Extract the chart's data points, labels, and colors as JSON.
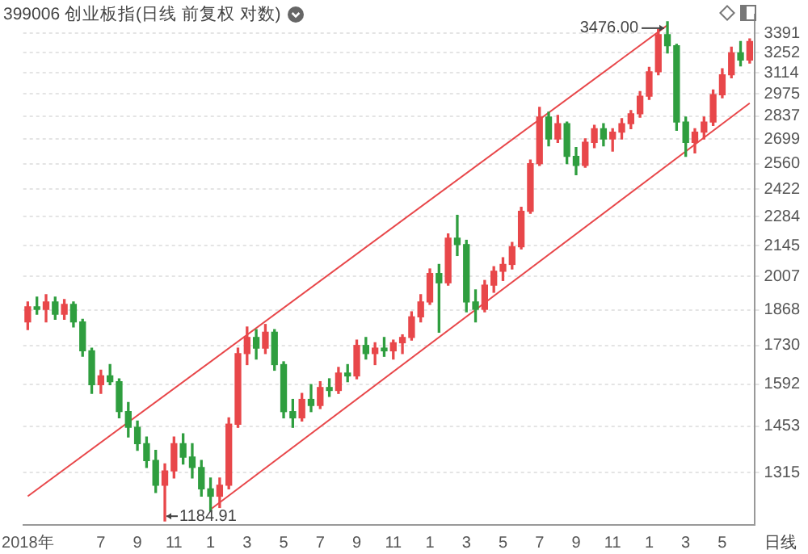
{
  "chart_data": {
    "type": "candlestick",
    "title": "399006 创业板指(日线 前复权 对数)",
    "categories": [
      "2018年",
      null,
      null,
      null,
      null,
      null,
      null,
      null,
      "7",
      null,
      null,
      null,
      "9",
      null,
      null,
      null,
      "11",
      null,
      null,
      null,
      "1",
      null,
      null,
      null,
      "3",
      null,
      null,
      null,
      "5",
      null,
      null,
      null,
      "7",
      null,
      null,
      null,
      "9",
      null,
      null,
      null,
      "11",
      null,
      null,
      null,
      "1",
      null,
      null,
      null,
      "3",
      null,
      null,
      null,
      "5",
      null,
      null,
      null,
      "7",
      null,
      null,
      null,
      "9",
      null,
      null,
      null,
      "11",
      null,
      null,
      null,
      "1",
      null,
      null,
      null,
      "3",
      null,
      null,
      null,
      "5",
      null,
      null,
      null
    ],
    "ohlc": [
      [
        1820,
        1900,
        1790,
        1880
      ],
      [
        1880,
        1920,
        1850,
        1870
      ],
      [
        1870,
        1930,
        1820,
        1900
      ],
      [
        1900,
        1920,
        1830,
        1850
      ],
      [
        1850,
        1910,
        1830,
        1890
      ],
      [
        1890,
        1900,
        1800,
        1820
      ],
      [
        1820,
        1830,
        1690,
        1710
      ],
      [
        1710,
        1720,
        1560,
        1590
      ],
      [
        1590,
        1640,
        1560,
        1620
      ],
      [
        1620,
        1660,
        1590,
        1600
      ],
      [
        1600,
        1610,
        1480,
        1500
      ],
      [
        1500,
        1530,
        1420,
        1450
      ],
      [
        1450,
        1470,
        1380,
        1400
      ],
      [
        1400,
        1420,
        1330,
        1350
      ],
      [
        1350,
        1380,
        1260,
        1280
      ],
      [
        1280,
        1340,
        1184.91,
        1320
      ],
      [
        1320,
        1420,
        1300,
        1400
      ],
      [
        1400,
        1430,
        1340,
        1360
      ],
      [
        1360,
        1400,
        1300,
        1330
      ],
      [
        1330,
        1350,
        1250,
        1270
      ],
      [
        1270,
        1300,
        1210,
        1250
      ],
      [
        1250,
        1300,
        1220,
        1280
      ],
      [
        1280,
        1480,
        1270,
        1460
      ],
      [
        1460,
        1720,
        1450,
        1700
      ],
      [
        1700,
        1800,
        1660,
        1760
      ],
      [
        1760,
        1790,
        1680,
        1720
      ],
      [
        1720,
        1810,
        1700,
        1780
      ],
      [
        1780,
        1790,
        1640,
        1660
      ],
      [
        1660,
        1670,
        1480,
        1500
      ],
      [
        1500,
        1540,
        1450,
        1480
      ],
      [
        1480,
        1560,
        1470,
        1540
      ],
      [
        1540,
        1590,
        1500,
        1520
      ],
      [
        1520,
        1600,
        1510,
        1580
      ],
      [
        1580,
        1610,
        1550,
        1570
      ],
      [
        1570,
        1650,
        1560,
        1630
      ],
      [
        1630,
        1660,
        1600,
        1620
      ],
      [
        1620,
        1750,
        1610,
        1730
      ],
      [
        1730,
        1760,
        1680,
        1700
      ],
      [
        1700,
        1740,
        1660,
        1720
      ],
      [
        1720,
        1760,
        1690,
        1710
      ],
      [
        1710,
        1750,
        1680,
        1740
      ],
      [
        1740,
        1770,
        1700,
        1760
      ],
      [
        1760,
        1860,
        1750,
        1840
      ],
      [
        1840,
        1930,
        1820,
        1900
      ],
      [
        1900,
        2040,
        1890,
        2020
      ],
      [
        2020,
        2060,
        1780,
        1980
      ],
      [
        1980,
        2200,
        1970,
        2180
      ],
      [
        2180,
        2290,
        2100,
        2150
      ],
      [
        2150,
        2170,
        1860,
        1900
      ],
      [
        1900,
        1950,
        1820,
        1870
      ],
      [
        1870,
        1990,
        1860,
        1970
      ],
      [
        1970,
        2050,
        1940,
        2030
      ],
      [
        2030,
        2090,
        1990,
        2060
      ],
      [
        2060,
        2160,
        2040,
        2140
      ],
      [
        2140,
        2330,
        2130,
        2310
      ],
      [
        2310,
        2580,
        2300,
        2560
      ],
      [
        2560,
        2890,
        2550,
        2830
      ],
      [
        2830,
        2860,
        2660,
        2700
      ],
      [
        2700,
        2840,
        2680,
        2790
      ],
      [
        2790,
        2800,
        2560,
        2600
      ],
      [
        2600,
        2650,
        2500,
        2550
      ],
      [
        2550,
        2700,
        2540,
        2680
      ],
      [
        2680,
        2780,
        2650,
        2760
      ],
      [
        2760,
        2790,
        2660,
        2700
      ],
      [
        2700,
        2760,
        2630,
        2740
      ],
      [
        2740,
        2820,
        2700,
        2790
      ],
      [
        2790,
        2870,
        2760,
        2850
      ],
      [
        2850,
        2990,
        2830,
        2960
      ],
      [
        2960,
        3150,
        2940,
        3120
      ],
      [
        3120,
        3420,
        3100,
        3380
      ],
      [
        3380,
        3476,
        3250,
        3300
      ],
      [
        3300,
        3310,
        2750,
        2800
      ],
      [
        2800,
        2830,
        2600,
        2680
      ],
      [
        2680,
        2760,
        2620,
        2740
      ],
      [
        2740,
        2830,
        2700,
        2800
      ],
      [
        2800,
        3000,
        2780,
        2970
      ],
      [
        2970,
        3140,
        2950,
        3100
      ],
      [
        3100,
        3290,
        3080,
        3250
      ],
      [
        3250,
        3330,
        3160,
        3200
      ],
      [
        3200,
        3350,
        3180,
        3330
      ]
    ],
    "series": [
      {
        "type": "line",
        "color": "#e8474a",
        "values": [
          1250,
          null,
          null,
          null,
          null,
          null,
          null,
          null,
          null,
          null,
          null,
          null,
          null,
          null,
          null,
          null,
          null,
          null,
          null,
          null,
          null,
          null,
          null,
          null,
          null,
          null,
          null,
          null,
          null,
          null,
          null,
          null,
          null,
          null,
          null,
          null,
          null,
          null,
          null,
          null,
          null,
          null,
          null,
          null,
          null,
          null,
          null,
          null,
          null,
          null,
          null,
          null,
          null,
          null,
          null,
          null,
          null,
          null,
          null,
          null,
          null,
          null,
          null,
          null,
          null,
          null,
          null,
          null,
          null,
          null,
          3450,
          null,
          null,
          null,
          null,
          null,
          null,
          null,
          null,
          null
        ]
      },
      {
        "type": "line",
        "color": "#e8474a",
        "values": [
          null,
          null,
          null,
          null,
          null,
          null,
          null,
          null,
          null,
          null,
          null,
          null,
          null,
          null,
          null,
          null,
          null,
          null,
          null,
          null,
          1215,
          null,
          null,
          null,
          null,
          null,
          null,
          null,
          null,
          null,
          null,
          null,
          null,
          null,
          null,
          null,
          null,
          null,
          null,
          null,
          null,
          null,
          null,
          null,
          null,
          null,
          null,
          null,
          null,
          null,
          null,
          null,
          null,
          null,
          null,
          null,
          null,
          null,
          null,
          null,
          null,
          null,
          null,
          null,
          null,
          null,
          null,
          null,
          null,
          null,
          null,
          null,
          null,
          null,
          null,
          null,
          null,
          null,
          null,
          2916
        ]
      }
    ],
    "log": true,
    "ylim": [
      1175,
      3530
    ],
    "yticks": [
      1315,
      1453,
      1592,
      1730,
      1868,
      2007,
      2145,
      2284,
      2422,
      2560,
      2699,
      2837,
      2975,
      3114,
      3252,
      3391
    ],
    "grid": "y",
    "annotations": [
      "3476.00",
      "1184.91",
      "日线"
    ]
  }
}
